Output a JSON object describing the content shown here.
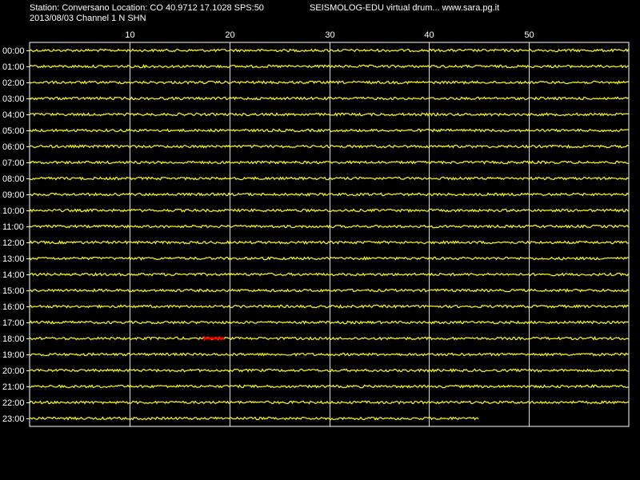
{
  "header": {
    "station_line": "Station: Conversano Location: CO 40.9712 17.1028 SPS:50",
    "date_line": "2013/08/03  Channel 1 N SHN",
    "banner": "SEISMOLOG-EDU virtual drum... www.sara.pg.it"
  },
  "chart_data": {
    "type": "line",
    "x_range_minutes": [
      0,
      60
    ],
    "x_ticks": [
      10,
      20,
      30,
      40,
      50
    ],
    "grid": true,
    "hours": [
      "00:00",
      "01:00",
      "02:00",
      "03:00",
      "04:00",
      "05:00",
      "06:00",
      "07:00",
      "08:00",
      "09:00",
      "10:00",
      "11:00",
      "12:00",
      "13:00",
      "14:00",
      "15:00",
      "16:00",
      "17:00",
      "18:00",
      "19:00",
      "20:00",
      "21:00",
      "22:00",
      "23:00"
    ],
    "last_trace_end_minute": 45,
    "marker": {
      "hour": "18:00",
      "start_minute": 17.5,
      "end_minute": 19.5
    },
    "colors": {
      "trace": "#ffff00",
      "marker": "#ff0000",
      "grid": "#ffffff",
      "background": "#000000"
    }
  }
}
